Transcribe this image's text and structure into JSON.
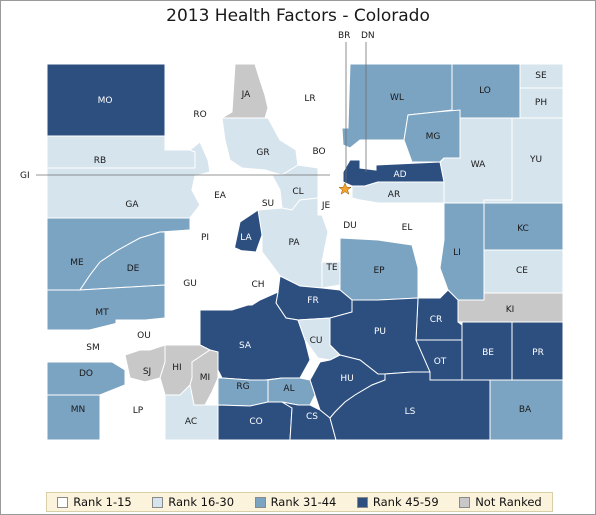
{
  "title": "2013 Health Factors - Colorado",
  "colors": {
    "rank_1_15": "#ffffff",
    "rank_16_30": "#d6e4ee",
    "rank_31_44": "#7ba3c2",
    "rank_45_59": "#2c4f80",
    "not_ranked": "#c8c8c8",
    "capital_star": "#f4a32e"
  },
  "legend": [
    {
      "label": "Rank 1-15",
      "color": "#ffffff"
    },
    {
      "label": "Rank 16-30",
      "color": "#d6e4ee"
    },
    {
      "label": "Rank 31-44",
      "color": "#7ba3c2"
    },
    {
      "label": "Rank 45-59",
      "color": "#2c4f80"
    },
    {
      "label": "Not Ranked",
      "color": "#c8c8c8"
    }
  ],
  "callouts": [
    "BR",
    "DN",
    "GI"
  ],
  "counties": [
    {
      "label": "MO",
      "rank": "Rank 45-59"
    },
    {
      "label": "RO",
      "rank": "Rank 1-15"
    },
    {
      "label": "JA",
      "rank": "Not Ranked"
    },
    {
      "label": "LR",
      "rank": "Rank 1-15"
    },
    {
      "label": "WL",
      "rank": "Rank 31-44"
    },
    {
      "label": "LO",
      "rank": "Rank 31-44"
    },
    {
      "label": "SE",
      "rank": "Rank 16-30"
    },
    {
      "label": "PH",
      "rank": "Rank 16-30"
    },
    {
      "label": "RB",
      "rank": "Rank 16-30"
    },
    {
      "label": "GR",
      "rank": "Rank 16-30"
    },
    {
      "label": "BO",
      "rank": "Rank 1-15"
    },
    {
      "label": "MG",
      "rank": "Rank 31-44"
    },
    {
      "label": "WA",
      "rank": "Rank 16-30"
    },
    {
      "label": "YU",
      "rank": "Rank 16-30"
    },
    {
      "label": "GA",
      "rank": "Rank 16-30"
    },
    {
      "label": "EA",
      "rank": "Rank 1-15"
    },
    {
      "label": "SU",
      "rank": "Rank 1-15"
    },
    {
      "label": "CL",
      "rank": "Rank 16-30"
    },
    {
      "label": "JE",
      "rank": "Rank 1-15"
    },
    {
      "label": "AD",
      "rank": "Rank 45-59"
    },
    {
      "label": "AR",
      "rank": "Rank 16-30"
    },
    {
      "label": "DU",
      "rank": "Rank 1-15"
    },
    {
      "label": "EL",
      "rank": "Rank 1-15"
    },
    {
      "label": "LI",
      "rank": "Rank 31-44"
    },
    {
      "label": "KC",
      "rank": "Rank 31-44"
    },
    {
      "label": "PI",
      "rank": "Rank 1-15"
    },
    {
      "label": "LA",
      "rank": "Rank 45-59"
    },
    {
      "label": "PA",
      "rank": "Rank 16-30"
    },
    {
      "label": "ME",
      "rank": "Rank 31-44"
    },
    {
      "label": "DE",
      "rank": "Rank 31-44"
    },
    {
      "label": "TE",
      "rank": "Rank 16-30"
    },
    {
      "label": "EP",
      "rank": "Rank 31-44"
    },
    {
      "label": "CE",
      "rank": "Rank 16-30"
    },
    {
      "label": "GU",
      "rank": "Rank 1-15"
    },
    {
      "label": "CH",
      "rank": "Rank 1-15"
    },
    {
      "label": "FR",
      "rank": "Rank 45-59"
    },
    {
      "label": "KI",
      "rank": "Not Ranked"
    },
    {
      "label": "MT",
      "rank": "Rank 31-44"
    },
    {
      "label": "OU",
      "rank": "Rank 1-15"
    },
    {
      "label": "CR",
      "rank": "Rank 45-59"
    },
    {
      "label": "SA",
      "rank": "Rank 45-59"
    },
    {
      "label": "PU",
      "rank": "Rank 45-59"
    },
    {
      "label": "SM",
      "rank": "Rank 1-15"
    },
    {
      "label": "CU",
      "rank": "Rank 16-30"
    },
    {
      "label": "BE",
      "rank": "Rank 45-59"
    },
    {
      "label": "PR",
      "rank": "Rank 45-59"
    },
    {
      "label": "OT",
      "rank": "Rank 45-59"
    },
    {
      "label": "DO",
      "rank": "Rank 31-44"
    },
    {
      "label": "SJ",
      "rank": "Not Ranked"
    },
    {
      "label": "HI",
      "rank": "Not Ranked"
    },
    {
      "label": "MI",
      "rank": "Not Ranked"
    },
    {
      "label": "HU",
      "rank": "Rank 45-59"
    },
    {
      "label": "RG",
      "rank": "Rank 31-44"
    },
    {
      "label": "AL",
      "rank": "Rank 31-44"
    },
    {
      "label": "MN",
      "rank": "Rank 31-44"
    },
    {
      "label": "LP",
      "rank": "Rank 1-15"
    },
    {
      "label": "AC",
      "rank": "Rank 16-30"
    },
    {
      "label": "CO",
      "rank": "Rank 45-59"
    },
    {
      "label": "CS",
      "rank": "Rank 45-59"
    },
    {
      "label": "LS",
      "rank": "Rank 45-59"
    },
    {
      "label": "BA",
      "rank": "Rank 31-44"
    }
  ]
}
